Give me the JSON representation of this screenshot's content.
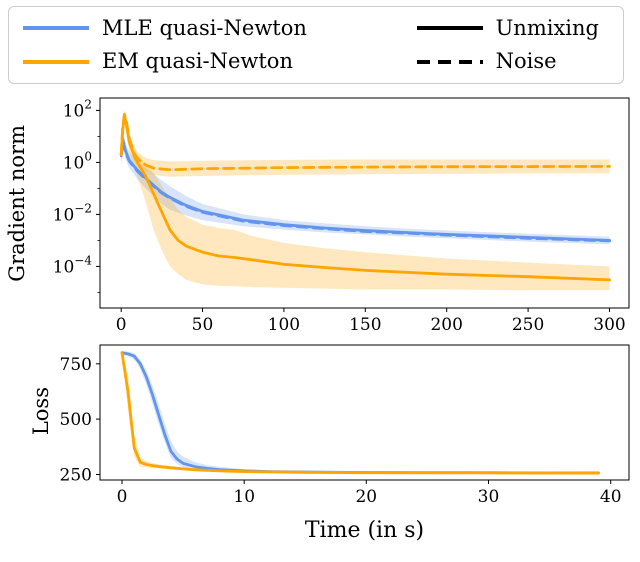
{
  "colors": {
    "mle_blue": "#6495ed",
    "em_orange": "#ffa500",
    "legend_border": "#cccccc",
    "axis": "#000000"
  },
  "legend": {
    "color_entries": [
      {
        "label": "MLE quasi-Newton",
        "color": "#6495ed",
        "dash": "solid"
      },
      {
        "label": "EM quasi-Newton",
        "color": "#ffa500",
        "dash": "solid"
      }
    ],
    "style_entries": [
      {
        "label": "Unmixing",
        "color": "#000000",
        "dash": "solid"
      },
      {
        "label": "Noise",
        "color": "#000000",
        "dash": "dashed"
      }
    ]
  },
  "chart_data": [
    {
      "type": "line",
      "title": "",
      "ylabel": "Gradient norm",
      "xlabel": "",
      "yscale": "log",
      "grid": false,
      "legend_position": "top",
      "xlim": [
        -13,
        312
      ],
      "ylim": [
        2.5e-06,
        300
      ],
      "xticks": [
        0,
        50,
        100,
        150,
        200,
        250,
        300
      ],
      "yticks": [
        {
          "value": 100,
          "label": "10^2"
        },
        {
          "value": 1,
          "label": "10^0"
        },
        {
          "value": 0.01,
          "label": "10^−2"
        },
        {
          "value": 0.0001,
          "label": "10^−4"
        }
      ],
      "yticks_minor": [
        10,
        0.1,
        0.001,
        1e-05
      ],
      "series": [
        {
          "name": "MLE quasi-Newton (Unmixing)",
          "color": "#6495ed",
          "dash": "solid",
          "x": [
            0,
            1,
            2,
            3,
            5,
            8,
            10,
            15,
            20,
            25,
            30,
            40,
            50,
            75,
            100,
            125,
            150,
            175,
            200,
            250,
            300
          ],
          "y": [
            2,
            8,
            4,
            2.5,
            1.2,
            0.7,
            0.5,
            0.25,
            0.13,
            0.07,
            0.045,
            0.022,
            0.013,
            0.006,
            0.004,
            0.003,
            0.0024,
            0.002,
            0.0017,
            0.0013,
            0.001
          ],
          "band_upper": [
            5,
            15,
            8,
            5,
            2.5,
            1.5,
            1.1,
            0.6,
            0.35,
            0.2,
            0.12,
            0.05,
            0.025,
            0.01,
            0.006,
            0.0045,
            0.0035,
            0.0028,
            0.0024,
            0.0018,
            0.0014
          ],
          "band_lower": [
            0.8,
            3,
            2,
            1.2,
            0.6,
            0.35,
            0.22,
            0.1,
            0.05,
            0.025,
            0.015,
            0.009,
            0.006,
            0.0035,
            0.0026,
            0.002,
            0.0017,
            0.0014,
            0.0012,
            0.0009,
            0.0007
          ]
        },
        {
          "name": "MLE quasi-Newton (Noise)",
          "color": "#6495ed",
          "dash": "dashed",
          "x": [
            0,
            1,
            2,
            3,
            5,
            8,
            10,
            15,
            20,
            25,
            30,
            40,
            50,
            75,
            100,
            125,
            150,
            175,
            200,
            250,
            300
          ],
          "y": [
            1.8,
            7,
            3.6,
            2.2,
            1.1,
            0.65,
            0.46,
            0.23,
            0.12,
            0.065,
            0.042,
            0.02,
            0.012,
            0.0055,
            0.0037,
            0.0028,
            0.0022,
            0.0019,
            0.0016,
            0.0012,
            0.00095
          ]
        },
        {
          "name": "EM quasi-Newton (Unmixing)",
          "color": "#ffa500",
          "dash": "solid",
          "x": [
            0,
            1,
            2,
            3,
            5,
            8,
            10,
            15,
            20,
            25,
            30,
            35,
            40,
            50,
            60,
            70,
            80,
            100,
            125,
            150,
            200,
            250,
            300
          ],
          "y": [
            2,
            20,
            60,
            35,
            6,
            1.8,
            1.0,
            0.3,
            0.06,
            0.012,
            0.0025,
            0.001,
            0.0006,
            0.00035,
            0.00025,
            0.00022,
            0.00018,
            0.00012,
            9e-05,
            7e-05,
            5e-05,
            4e-05,
            3e-05
          ],
          "band_upper": [
            5,
            50,
            95,
            60,
            12,
            3.5,
            2.0,
            0.9,
            0.4,
            0.12,
            0.04,
            0.015,
            0.008,
            0.004,
            0.003,
            0.0025,
            0.0015,
            0.0008,
            0.0005,
            0.00035,
            0.0002,
            0.00014,
            0.0001
          ],
          "band_lower": [
            0.8,
            8,
            25,
            15,
            2.5,
            0.7,
            0.3,
            0.03,
            0.0025,
            0.0004,
            0.0001,
            5e-05,
            3e-05,
            2e-05,
            1.8e-05,
            1.7e-05,
            1.6e-05,
            1.5e-05,
            1.4e-05,
            1.3e-05,
            1.3e-05,
            1.2e-05,
            1.2e-05
          ]
        },
        {
          "name": "EM quasi-Newton (Noise)",
          "color": "#ffa500",
          "dash": "dashed",
          "x": [
            0,
            1,
            2,
            3,
            5,
            8,
            10,
            15,
            20,
            30,
            40,
            50,
            75,
            100,
            150,
            200,
            250,
            300
          ],
          "y": [
            2,
            25,
            70,
            45,
            8,
            2.2,
            1.4,
            0.8,
            0.6,
            0.52,
            0.54,
            0.57,
            0.6,
            0.63,
            0.66,
            0.68,
            0.69,
            0.7
          ],
          "band_upper": [
            5,
            60,
            100,
            70,
            15,
            4,
            2.5,
            1.5,
            1.2,
            1.1,
            1.1,
            1.15,
            1.2,
            1.25,
            1.3,
            1.3,
            1.3,
            1.3
          ],
          "band_lower": [
            0.8,
            10,
            40,
            25,
            4,
            1.2,
            0.8,
            0.45,
            0.33,
            0.28,
            0.29,
            0.3,
            0.32,
            0.33,
            0.35,
            0.36,
            0.37,
            0.37
          ]
        }
      ]
    },
    {
      "type": "line",
      "title": "",
      "ylabel": "Loss",
      "xlabel": "Time (in s)",
      "yscale": "linear",
      "grid": false,
      "xlim": [
        -1.8,
        41.5
      ],
      "ylim": [
        225,
        835
      ],
      "xticks": [
        0,
        10,
        20,
        30,
        40
      ],
      "yticks": [
        {
          "value": 250,
          "label": "250"
        },
        {
          "value": 500,
          "label": "500"
        },
        {
          "value": 750,
          "label": "750"
        }
      ],
      "series": [
        {
          "name": "MLE quasi-Newton",
          "color": "#6495ed",
          "dash": "solid",
          "x": [
            0,
            0.5,
            1,
            1.5,
            2,
            2.5,
            3,
            3.5,
            4,
            4.5,
            5,
            6,
            7,
            8,
            10,
            12,
            15,
            20,
            25,
            30,
            35,
            39
          ],
          "y": [
            800,
            795,
            785,
            750,
            690,
            610,
            520,
            430,
            355,
            320,
            300,
            285,
            277,
            272,
            266,
            263,
            261,
            259,
            258,
            258,
            257,
            257
          ],
          "band_upper": [
            810,
            805,
            798,
            770,
            720,
            650,
            570,
            480,
            400,
            355,
            330,
            305,
            292,
            284,
            274,
            269,
            266,
            263,
            261,
            261,
            260,
            260
          ],
          "band_lower": [
            790,
            785,
            770,
            725,
            655,
            570,
            480,
            395,
            325,
            298,
            283,
            272,
            267,
            263,
            260,
            258,
            257,
            256,
            255,
            255,
            254,
            254
          ]
        },
        {
          "name": "EM quasi-Newton",
          "color": "#ffa500",
          "dash": "solid",
          "x": [
            0,
            0.5,
            1,
            1.5,
            2,
            2.5,
            3,
            4,
            5,
            6,
            8,
            10,
            15,
            20,
            30,
            39
          ],
          "y": [
            800,
            620,
            370,
            305,
            295,
            290,
            286,
            280,
            275,
            271,
            266,
            263,
            260,
            258,
            257,
            256
          ],
          "band_upper": [
            810,
            700,
            430,
            330,
            310,
            302,
            296,
            288,
            282,
            277,
            271,
            267,
            263,
            261,
            259,
            258
          ],
          "band_lower": [
            790,
            540,
            330,
            285,
            282,
            279,
            277,
            273,
            269,
            266,
            262,
            260,
            257,
            256,
            254,
            253
          ]
        }
      ]
    }
  ]
}
